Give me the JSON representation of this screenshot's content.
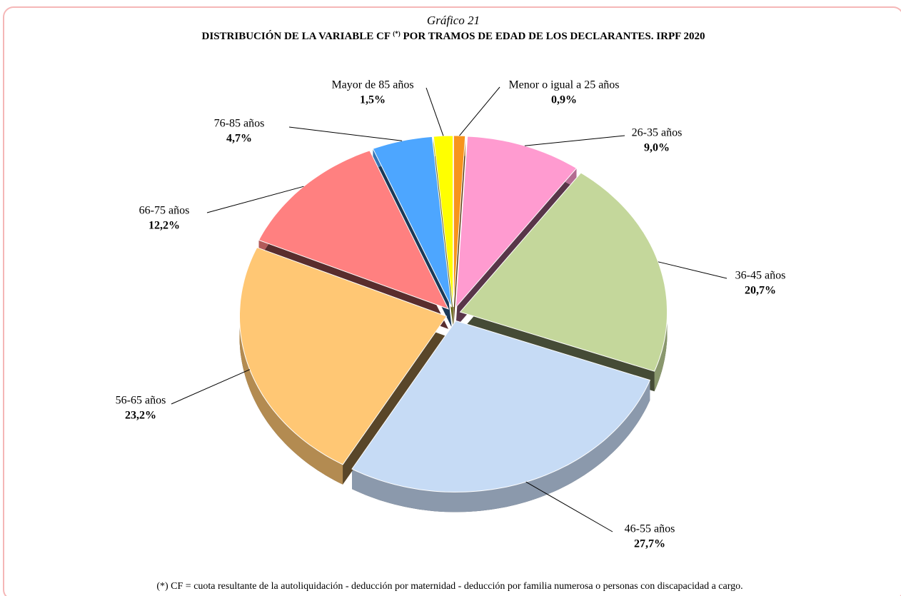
{
  "chart_data": {
    "type": "pie",
    "label": "Gráfico 21",
    "title": "DISTRIBUCIÓN DE LA VARIABLE CF",
    "title_note": "(*)",
    "title_rest": "POR TRAMOS DE EDAD DE LOS DECLARANTES. IRPF 2020",
    "categories": [
      "Menor o igual a 25 años",
      "26-35 años",
      "36-45 años",
      "46-55 años",
      "56-65 años",
      "66-75 años",
      "76-85 años",
      "Mayor de 85 años"
    ],
    "values": [
      0.9,
      9.0,
      20.7,
      27.7,
      23.2,
      12.2,
      4.7,
      1.5
    ],
    "value_labels": [
      "0,9%",
      "9,0%",
      "20,7%",
      "27,7%",
      "23,2%",
      "12,2%",
      "4,7%",
      "1,5%"
    ],
    "colors": [
      "#f7941d",
      "#ff9bd0",
      "#c4d79b",
      "#c6dbf5",
      "#ffc774",
      "#ff8080",
      "#4da6ff",
      "#ffff00"
    ],
    "footnote": "(*) CF = cuota resultante de la autoliquidación - deducción por maternidad - deducción por familia numerosa o personas con discapacidad a cargo."
  }
}
